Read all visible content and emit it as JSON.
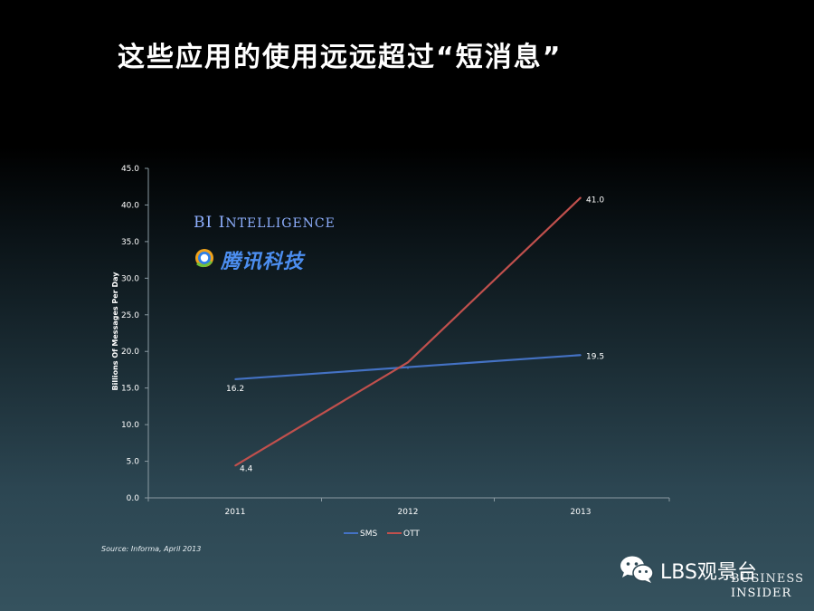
{
  "slide": {
    "title": "这些应用的使用远远超过“短消息”",
    "bi_logo": {
      "first": "BI I",
      "rest": "NTELLIGENCE"
    },
    "tencent_logo": "腾讯科技",
    "source": "Source: Informa, April 2013",
    "wechat_account": "LBS观景台",
    "corner_brand": {
      "line1": "BUSINESS",
      "line2": "INSIDER"
    }
  },
  "chart_data": {
    "type": "line",
    "title": "",
    "xlabel": "",
    "ylabel": "Billions Of Messages Per Day",
    "categories": [
      "2011",
      "2012",
      "2013"
    ],
    "ylim": [
      0,
      45
    ],
    "yticks": [
      "0.0",
      "5.0",
      "10.0",
      "15.0",
      "20.0",
      "25.0",
      "30.0",
      "35.0",
      "40.0",
      "45.0"
    ],
    "series": [
      {
        "name": "SMS",
        "color": "#4472c4",
        "values": [
          16.2,
          17.7,
          19.5
        ],
        "labels": [
          "16.2",
          "",
          "19.5"
        ]
      },
      {
        "name": "OTT",
        "color": "#c0504d",
        "values": [
          4.4,
          18.5,
          41.0
        ],
        "labels": [
          "4.4",
          "",
          "41.0"
        ]
      }
    ],
    "legend": "bottom",
    "grid": false
  }
}
